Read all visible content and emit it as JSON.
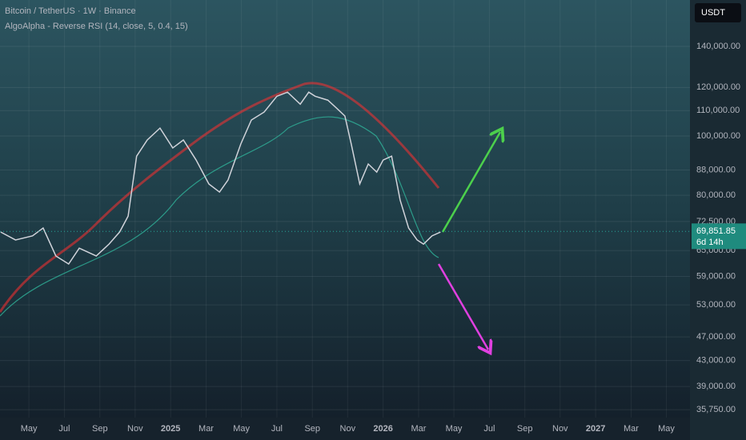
{
  "chart_data": {
    "type": "line",
    "title": "Bitcoin / TetherUS · 1W · Binance",
    "subtitle": "AlgoAlpha - Reverse RSI (14, close, 5, 0.4, 15)",
    "currency": "USDT",
    "last_price": {
      "value": 69851.85,
      "label": "69,851.85"
    },
    "countdown": "6d 14h",
    "log_scale": true,
    "grid": true,
    "color": "#d0d3da",
    "x": [
      2024.2,
      2024.27,
      2024.35,
      2024.4,
      2024.46,
      2024.52,
      2024.57,
      2024.65,
      2024.71,
      2024.76,
      2024.8,
      2024.84,
      2024.89,
      2024.95,
      2025.01,
      2025.06,
      2025.12,
      2025.18,
      2025.23,
      2025.27,
      2025.33,
      2025.38,
      2025.44,
      2025.5,
      2025.55,
      2025.61,
      2025.65,
      2025.68,
      2025.74,
      2025.78,
      2025.82,
      2025.85,
      2025.89,
      2025.93,
      2025.97,
      2026.0,
      2026.04,
      2026.08,
      2026.12,
      2026.16,
      2026.19,
      2026.23,
      2026.27
    ],
    "values": [
      69700,
      67650,
      68700,
      70750,
      63700,
      61800,
      65600,
      63700,
      66600,
      69700,
      74000,
      92700,
      98500,
      103000,
      95600,
      98500,
      91350,
      83500,
      81000,
      84750,
      97000,
      106200,
      109400,
      116100,
      117900,
      112700,
      117900,
      116100,
      114400,
      111100,
      107800,
      97000,
      83500,
      90000,
      87300,
      91350,
      92700,
      78600,
      70750,
      67650,
      66600,
      68700,
      69700
    ],
    "xlim": [
      2024.197,
      2027.444
    ],
    "xticks": [
      {
        "value": 2024.333,
        "label": "May"
      },
      {
        "value": 2024.5,
        "label": "Jul"
      },
      {
        "value": 2024.667,
        "label": "Sep"
      },
      {
        "value": 2024.833,
        "label": "Nov"
      },
      {
        "value": 2025,
        "label": "2025"
      },
      {
        "value": 2025.167,
        "label": "Mar"
      },
      {
        "value": 2025.333,
        "label": "May"
      },
      {
        "value": 2025.5,
        "label": "Jul"
      },
      {
        "value": 2025.667,
        "label": "Sep"
      },
      {
        "value": 2025.833,
        "label": "Nov"
      },
      {
        "value": 2026,
        "label": "2026"
      },
      {
        "value": 2026.167,
        "label": "Mar"
      },
      {
        "value": 2026.333,
        "label": "May"
      },
      {
        "value": 2026.5,
        "label": "Jul"
      },
      {
        "value": 2026.667,
        "label": "Sep"
      },
      {
        "value": 2026.833,
        "label": "Nov"
      },
      {
        "value": 2027,
        "label": "2027"
      },
      {
        "value": 2027.167,
        "label": "Mar"
      },
      {
        "value": 2027.333,
        "label": "May"
      }
    ],
    "ylim": [
      34700,
      166700
    ],
    "yticks": [
      {
        "value": 140000,
        "label": "140,000.00"
      },
      {
        "value": 120000,
        "label": "120,000.00"
      },
      {
        "value": 110000,
        "label": "110,000.00"
      },
      {
        "value": 100000,
        "label": "100,000.00"
      },
      {
        "value": 88000,
        "label": "88,000.00"
      },
      {
        "value": 80000,
        "label": "80,000.00"
      },
      {
        "value": 72500,
        "label": "72,500.00"
      },
      {
        "value": 65000,
        "label": "65,000.00"
      },
      {
        "value": 59000,
        "label": "59,000.00"
      },
      {
        "value": 53000,
        "label": "53,000.00"
      },
      {
        "value": 47000,
        "label": "47,000.00"
      },
      {
        "value": 43000,
        "label": "43,000.00"
      },
      {
        "value": 39000,
        "label": "39,000.00"
      },
      {
        "value": 35750,
        "label": "35,750.00"
      }
    ]
  }
}
